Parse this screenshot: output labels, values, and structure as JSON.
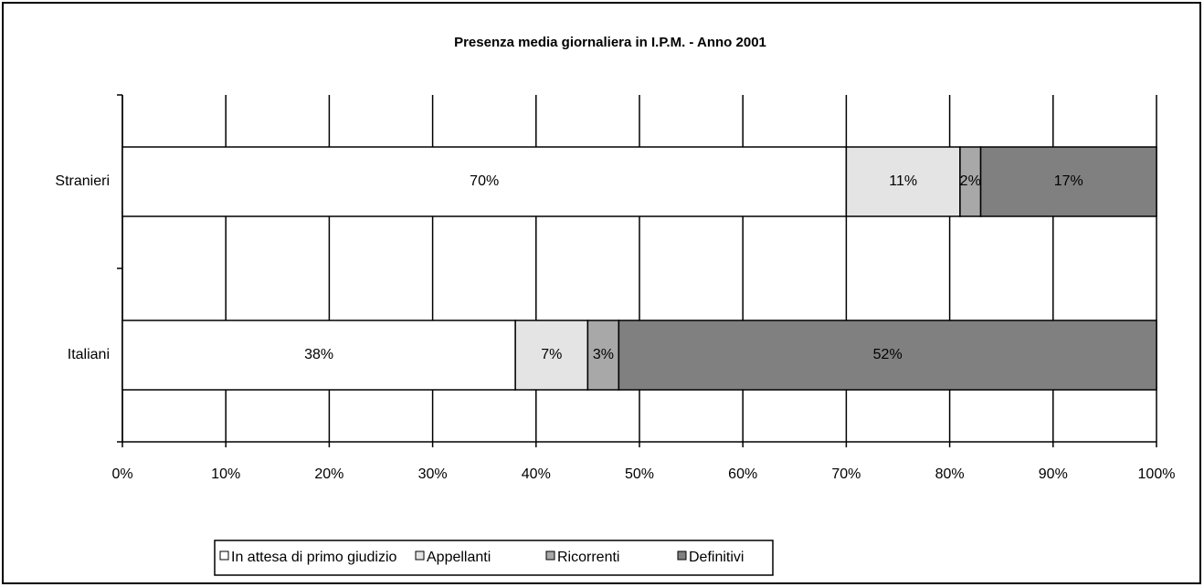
{
  "chart_data": {
    "type": "stacked-barh",
    "title": "Presenza media giornaliera in I.P.M. - Anno 2001",
    "categories": [
      "Italiani",
      "Stranieri"
    ],
    "series": [
      {
        "name": "In attesa di primo giudizio",
        "color": "#ffffff",
        "values": [
          38,
          70
        ],
        "value_labels": [
          "38%",
          "70%"
        ]
      },
      {
        "name": "Appellanti",
        "color": "#e4e4e4",
        "values": [
          7,
          11
        ],
        "value_labels": [
          "7%",
          "11%"
        ]
      },
      {
        "name": "Ricorrenti",
        "color": "#a8a8a8",
        "values": [
          3,
          2
        ],
        "value_labels": [
          "3%",
          "2%"
        ]
      },
      {
        "name": "Definitivi",
        "color": "#808080",
        "values": [
          52,
          17
        ],
        "value_labels": [
          "52%",
          "17%"
        ]
      }
    ],
    "xlim": [
      0,
      100
    ],
    "xticks": [
      {
        "value": 0,
        "label": "0%"
      },
      {
        "value": 10,
        "label": "10%"
      },
      {
        "value": 20,
        "label": "20%"
      },
      {
        "value": 30,
        "label": "30%"
      },
      {
        "value": 40,
        "label": "40%"
      },
      {
        "value": 50,
        "label": "50%"
      },
      {
        "value": 60,
        "label": "60%"
      },
      {
        "value": 70,
        "label": "70%"
      },
      {
        "value": 80,
        "label": "80%"
      },
      {
        "value": 90,
        "label": "90%"
      },
      {
        "value": 100,
        "label": "100%"
      }
    ],
    "grid": true,
    "legend": "bottom"
  }
}
